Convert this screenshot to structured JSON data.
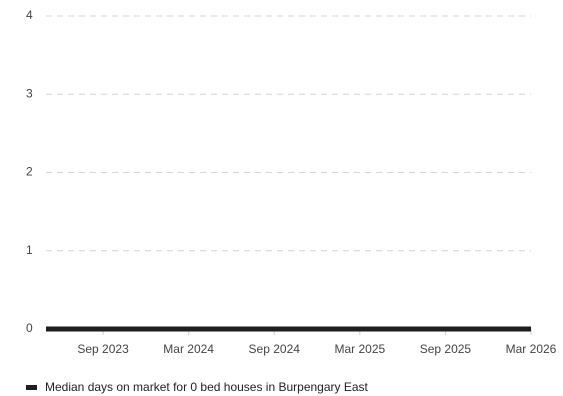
{
  "chart_data": {
    "type": "line",
    "title": "",
    "xlabel": "",
    "ylabel": "",
    "ylim": [
      0,
      4
    ],
    "y_ticks": [
      "0",
      "1",
      "2",
      "3",
      "4"
    ],
    "x_ticks": [
      "Sep 2023",
      "Mar 2024",
      "Sep 2024",
      "Mar 2025",
      "Sep 2025",
      "Mar 2026"
    ],
    "x_range": [
      "2023-05",
      "2026-03"
    ],
    "grid": true,
    "legend_position": "bottom-left",
    "series": [
      {
        "name": "Median days on market for 0 bed houses in Burpengary East",
        "color": "#1f1f1f",
        "x": [
          "2023-05",
          "2026-03"
        ],
        "values": [
          0,
          0
        ]
      }
    ]
  }
}
